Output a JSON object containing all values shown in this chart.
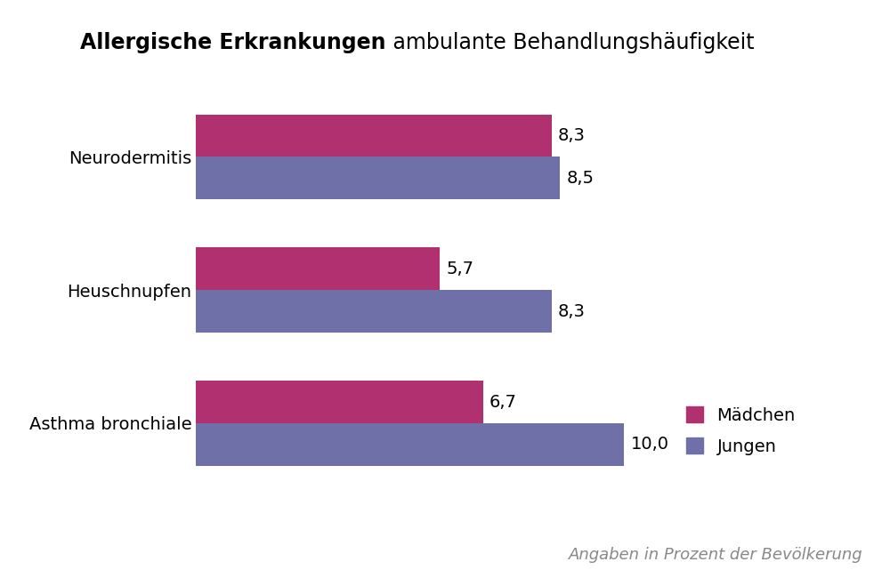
{
  "categories": [
    "Asthma bronchiale",
    "Heuschnupfen",
    "Neurodermitis"
  ],
  "maedchen_values": [
    6.7,
    5.7,
    8.3
  ],
  "jungen_values": [
    10.0,
    8.3,
    8.5
  ],
  "maedchen_labels": [
    "6,7",
    "5,7",
    "8,3"
  ],
  "jungen_labels": [
    "10,0",
    "8,3",
    "8,5"
  ],
  "maedchen_color": "#B03070",
  "jungen_color": "#7070A8",
  "title_bold": "Allergische Erkrankungen",
  "title_normal": " ambulante Behandlungshäufigkeit",
  "subtitle": "Angaben in Prozent der Bevölkerung",
  "legend_maedchen": "Mädchen",
  "legend_jungen": "Jungen",
  "xlim": [
    0,
    13.5
  ],
  "bar_height": 0.32,
  "label_fontsize": 14,
  "title_fontsize": 17,
  "subtitle_fontsize": 13,
  "category_fontsize": 14,
  "legend_fontsize": 14,
  "background_color": "#FFFFFF"
}
